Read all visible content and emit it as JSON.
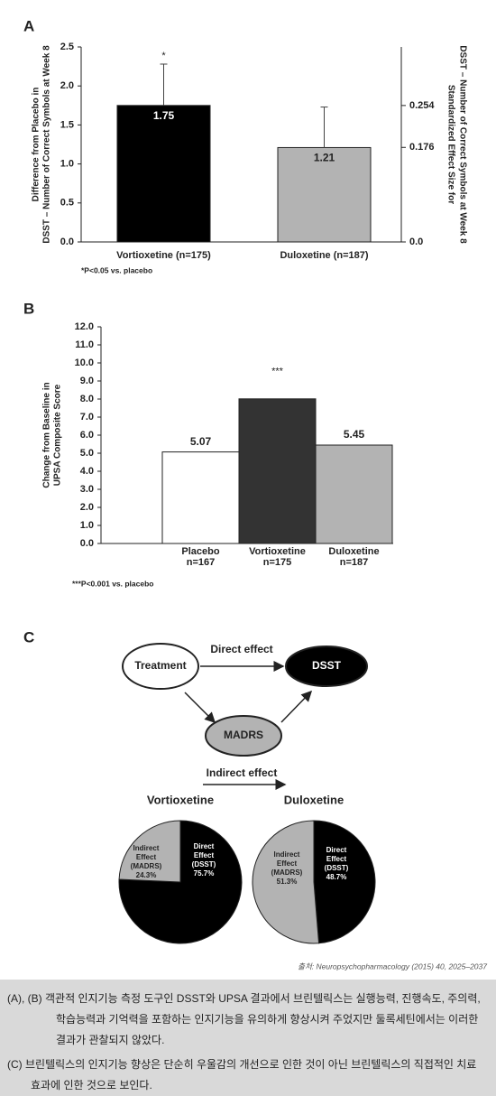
{
  "panel_labels": [
    "A",
    "B",
    "C"
  ],
  "chart_data": [
    {
      "type": "bar",
      "categories": [
        "Vortioxetine (n=175)",
        "Duloxetine (n=187)"
      ],
      "values": [
        1.75,
        1.21
      ],
      "errors": [
        0.53,
        0.52
      ],
      "significance": [
        "*",
        null
      ],
      "colors": [
        "#000000",
        "#b3b3b3"
      ],
      "ylabel": [
        "Difference from Placebo in",
        "DSST – Number of Correct Symbols at Week 8"
      ],
      "y2label": [
        "Standardized Effect Size for",
        "DSST – Number of Correct Symbols at Week 8"
      ],
      "ylim": [
        0,
        2.5
      ],
      "yticks": [
        {
          "value": 0,
          "label": "0.0"
        },
        0.5,
        {
          "value": 1,
          "label": "1.0"
        },
        1.5,
        {
          "value": 2,
          "label": "2.0"
        },
        2.5
      ],
      "y2lim": [
        0,
        0.363
      ],
      "y2ticks": [
        {
          "value": 0,
          "label": "0.0"
        },
        0.176,
        0.254
      ],
      "footnote": "*P<0.05 vs. placebo"
    },
    {
      "type": "bar",
      "categories": [
        "Placebo",
        "Vortioxetine",
        "Duloxetine"
      ],
      "category_notes": [
        "n=167",
        "n=175",
        "n=187"
      ],
      "values": [
        5.07,
        8.01,
        5.45
      ],
      "significance": [
        null,
        "***",
        null
      ],
      "colors": [
        "#ffffff",
        "#333333",
        "#b3b3b3"
      ],
      "ylabel": [
        "Change from Baseline in",
        "UPSA Composite Score"
      ],
      "ylim": [
        0,
        12
      ],
      "yticks": [
        {
          "value": 0,
          "label": "0.0"
        },
        {
          "value": 1,
          "label": "1.0"
        },
        {
          "value": 2,
          "label": "2.0"
        },
        {
          "value": 3,
          "label": "3.0"
        },
        {
          "value": 4,
          "label": "4.0"
        },
        {
          "value": 5,
          "label": "5.0"
        },
        {
          "value": 6,
          "label": "6.0"
        },
        {
          "value": 7,
          "label": "7.0"
        },
        {
          "value": 8,
          "label": "8.0"
        },
        {
          "value": 9,
          "label": "9.0"
        },
        {
          "value": 10,
          "label": "10.0"
        },
        {
          "value": 11,
          "label": "11.0"
        },
        {
          "value": 12,
          "label": "12.0"
        }
      ],
      "footnote": "***P<0.001 vs. placebo"
    },
    {
      "type": "pie",
      "title": "Vortioxetine",
      "categories": [
        "Direct Effect (DSST)",
        "Indirect Effect (MADRS)"
      ],
      "values": [
        75.7,
        24.3
      ],
      "value_labels": [
        "75.7%",
        "24.3%"
      ],
      "colors": [
        "#000000",
        "#b3b3b3"
      ]
    },
    {
      "type": "pie",
      "title": "Duloxetine",
      "categories": [
        "Direct Effect (DSST)",
        "Indirect Effect (MADRS)"
      ],
      "values": [
        48.7,
        51.3
      ],
      "value_labels": [
        "48.7%",
        "51.3%"
      ],
      "colors": [
        "#000000",
        "#b3b3b3"
      ]
    }
  ],
  "diagram": {
    "nodes": [
      {
        "label": "Treatment"
      },
      {
        "label": "DSST"
      },
      {
        "label": "MADRS"
      }
    ],
    "edges": [
      {
        "label": "Direct effect"
      },
      {
        "label": "Indirect effect"
      }
    ]
  },
  "source": "출처: Neuropsychopharmacology (2015) 40, 2025–2037",
  "caption": [
    "(A), (B) 객관적 인지기능 측정 도구인 DSST와 UPSA 결과에서 브린텔릭스는 실행능력, 진행속도, 주의력, 학습능력과 기억력을 포함하는 인지기능을 유의하게 향상시켜 주었지만 둘록세틴에서는 이러한 결과가 관찰되지 않았다.",
    "(C) 브린텔릭스의 인지기능 향상은 단순히 우울감의 개선으로 인한 것이 아닌 브린텔릭스의 직접적인 치료 효과에 인한 것으로 보인다."
  ]
}
